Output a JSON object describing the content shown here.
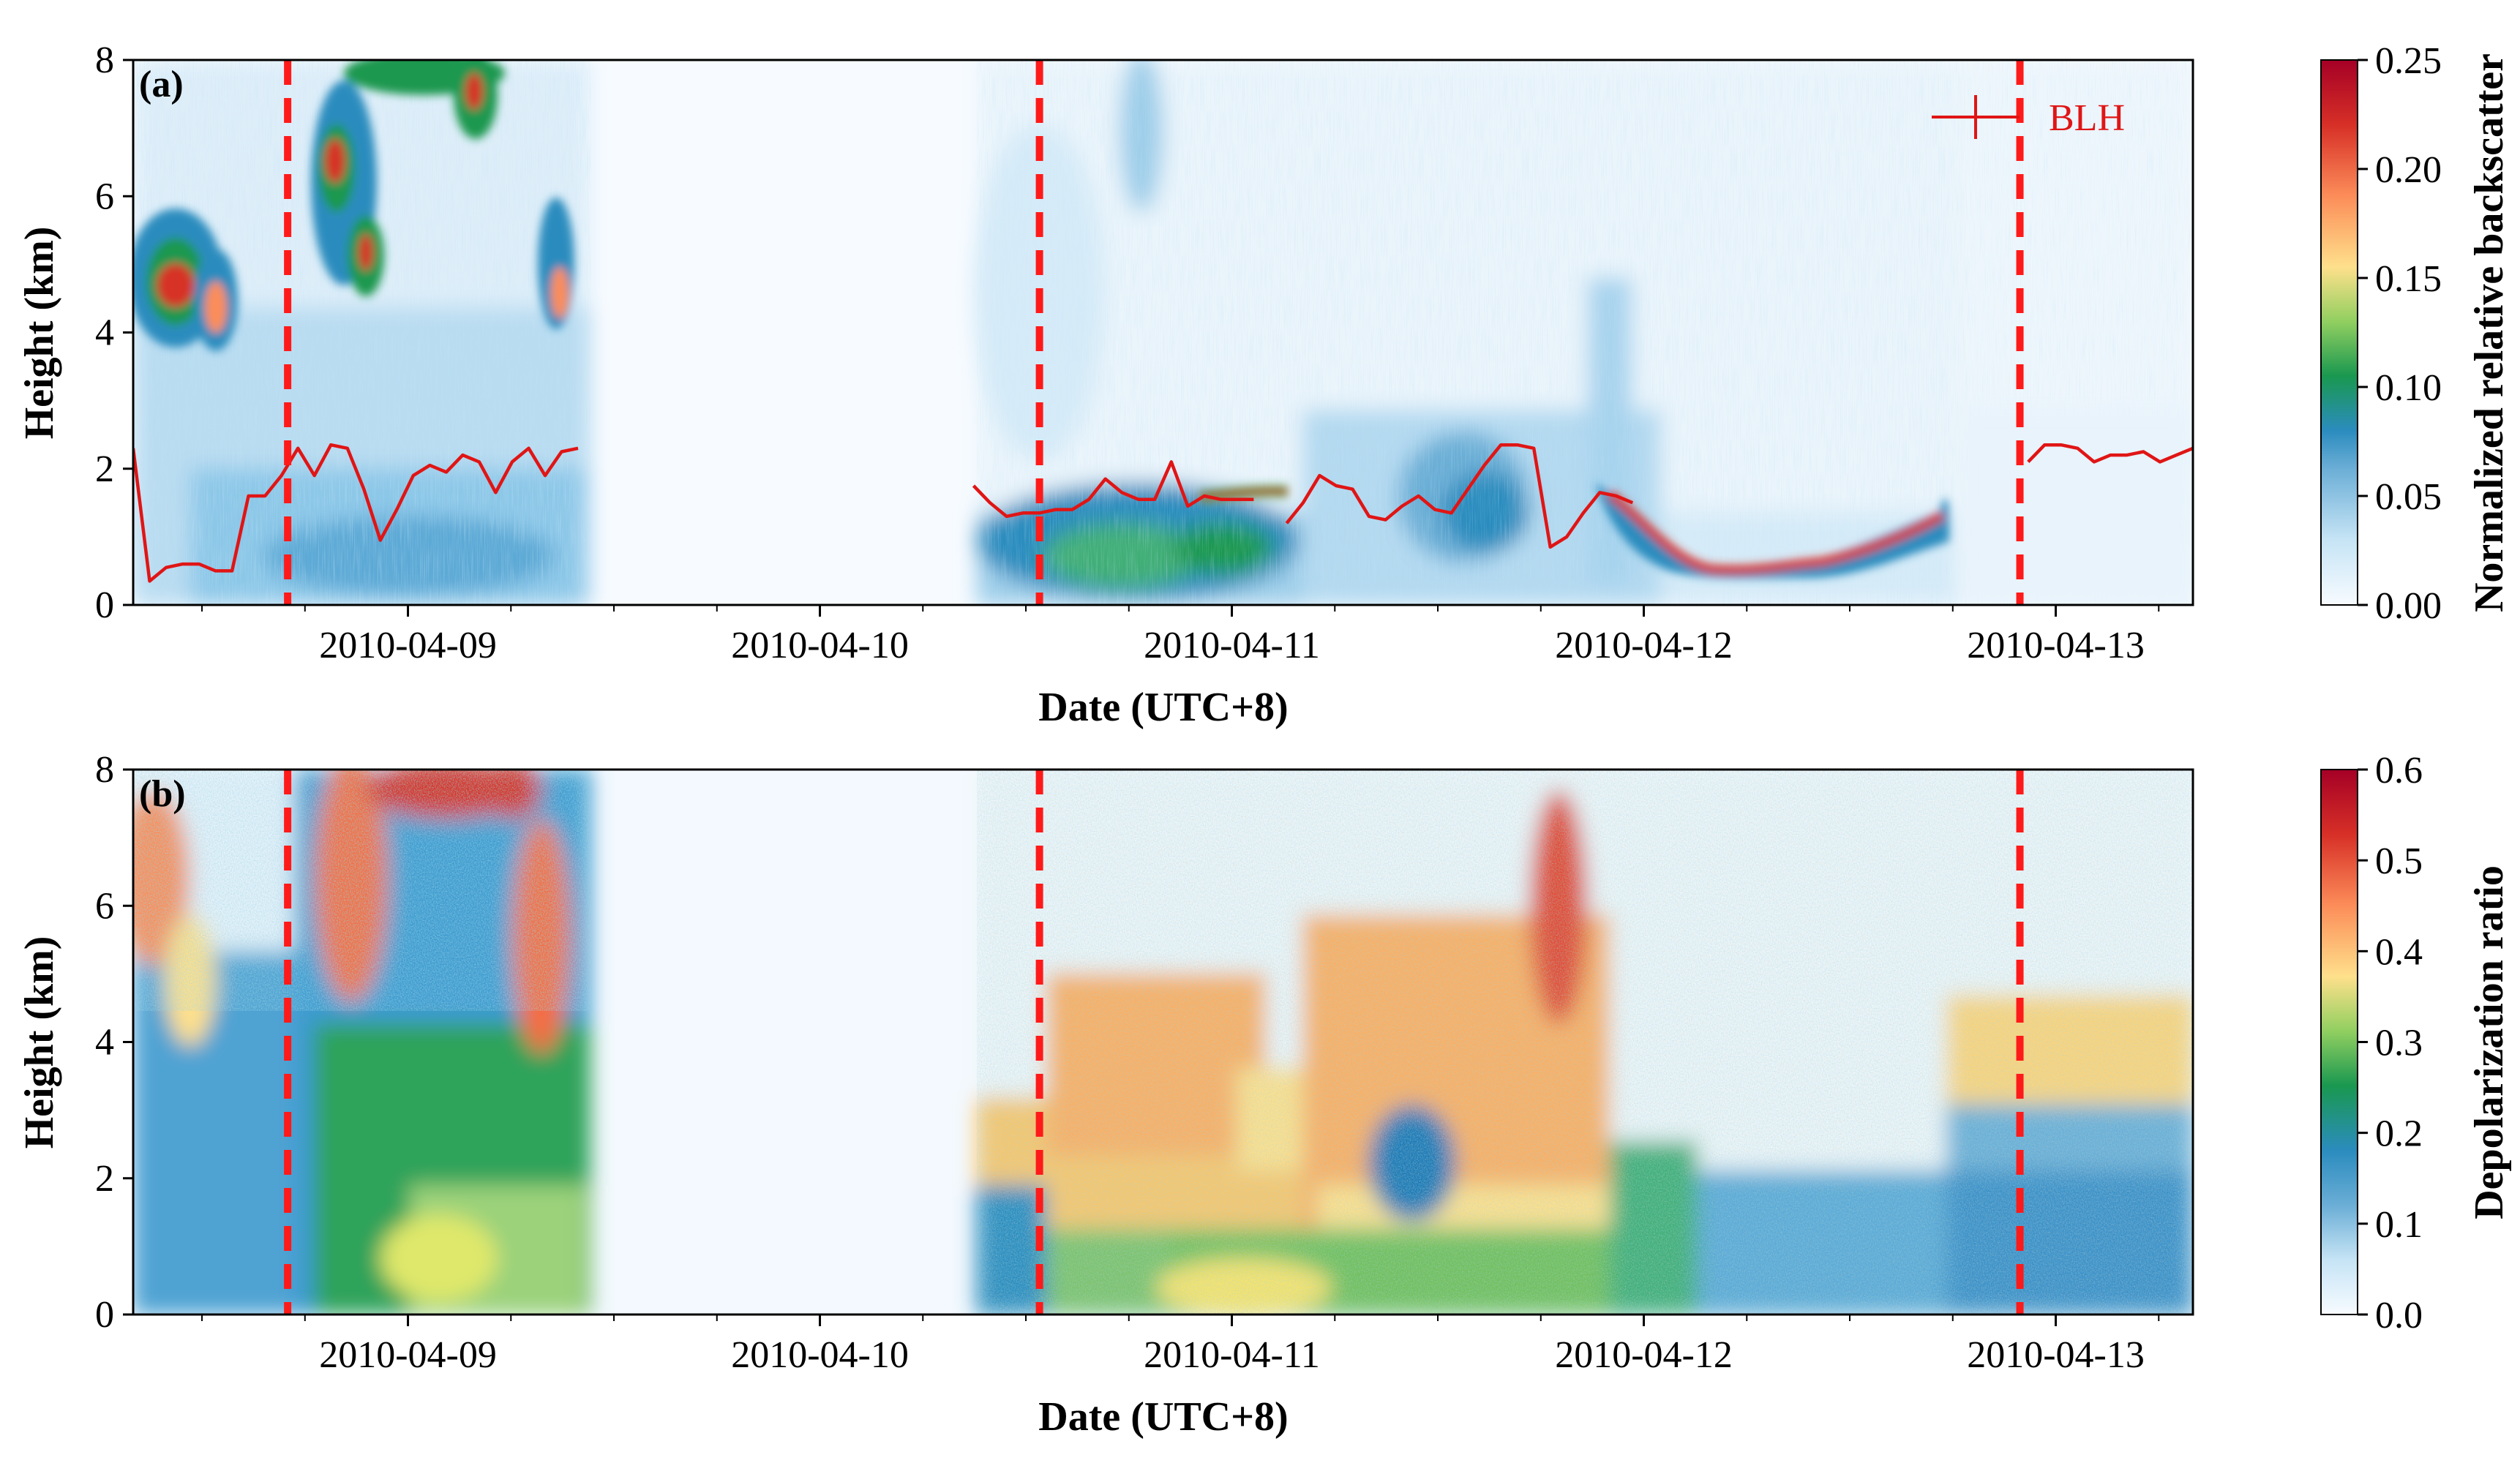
{
  "figure": {
    "panels": [
      {
        "tag": "(a)",
        "colorbar_label": "Normalized relative backscatter"
      },
      {
        "tag": "(b)",
        "colorbar_label": "Depolarization ratio"
      }
    ]
  },
  "colors": {
    "blh_line": "#e01515",
    "event_lines": "#ff1a1a",
    "axes": "#000000",
    "colormap": [
      "#f7fbff",
      "#c6e4f5",
      "#6baed6",
      "#2b8cbe",
      "#1a9850",
      "#91cf60",
      "#fee08b",
      "#fc8d59",
      "#d73027",
      "#a50026"
    ]
  },
  "chart_data": [
    {
      "type": "heatmap",
      "panel": "a",
      "title": "",
      "xlabel": "Date (UTC+8)",
      "ylabel": "Height (km)",
      "xlim_days": [
        0,
        5.0
      ],
      "x_reference_date": "2010-04-08 08:00",
      "ylim": [
        0,
        8
      ],
      "y_ticks": [
        "0",
        "2",
        "4",
        "6",
        "8"
      ],
      "x_ticks": [
        {
          "day": 0.667,
          "label": "2010-04-09"
        },
        {
          "day": 1.667,
          "label": "2010-04-10"
        },
        {
          "day": 2.667,
          "label": "2010-04-11"
        },
        {
          "day": 3.667,
          "label": "2010-04-12"
        },
        {
          "day": 4.667,
          "label": "2010-04-13"
        }
      ],
      "colorbar": {
        "label": "Normalized relative backscatter",
        "range": [
          0.0,
          0.25
        ],
        "ticks": [
          "0.00",
          "0.05",
          "0.10",
          "0.15",
          "0.20",
          "0.25"
        ]
      },
      "data_gaps_days": [
        [
          1.11,
          2.04
        ]
      ],
      "event_lines_days": [
        0.375,
        2.2,
        4.58
      ],
      "legend": {
        "entries": [
          "BLH"
        ],
        "placement": "top-right"
      },
      "series": [
        {
          "name": "BLH",
          "x_days": [
            0.0,
            0.04,
            0.08,
            0.12,
            0.16,
            0.2,
            0.24,
            0.28,
            0.32,
            0.36,
            0.4,
            0.44,
            0.48,
            0.52,
            0.56,
            0.6,
            0.64,
            0.68,
            0.72,
            0.76,
            0.8,
            0.84,
            0.88,
            0.92,
            0.96,
            1.0,
            1.04,
            1.08
          ],
          "y_km": [
            2.3,
            0.35,
            0.55,
            0.6,
            0.6,
            0.5,
            0.5,
            1.6,
            1.6,
            1.9,
            2.3,
            1.9,
            2.35,
            2.3,
            1.7,
            0.95,
            1.4,
            1.9,
            2.05,
            1.95,
            2.2,
            2.1,
            1.65,
            2.1,
            2.3,
            1.9,
            2.25,
            2.3
          ]
        },
        {
          "name": "BLH",
          "x_days": [
            2.04,
            2.08,
            2.12,
            2.16,
            2.2,
            2.24,
            2.28,
            2.32,
            2.36,
            2.4,
            2.44,
            2.48,
            2.52,
            2.56,
            2.6,
            2.64,
            2.68,
            2.72
          ],
          "y_km": [
            1.75,
            1.5,
            1.3,
            1.35,
            1.35,
            1.4,
            1.4,
            1.55,
            1.85,
            1.65,
            1.55,
            1.55,
            2.1,
            1.45,
            1.6,
            1.55,
            1.55,
            1.55
          ]
        },
        {
          "name": "BLH",
          "x_days": [
            2.8,
            2.84,
            2.88,
            2.92,
            2.96,
            3.0,
            3.04,
            3.08,
            3.12,
            3.16,
            3.2,
            3.24,
            3.28,
            3.32,
            3.36,
            3.4,
            3.44,
            3.48,
            3.52,
            3.56,
            3.6,
            3.64
          ],
          "y_km": [
            1.2,
            1.5,
            1.9,
            1.75,
            1.7,
            1.3,
            1.25,
            1.45,
            1.6,
            1.4,
            1.35,
            1.7,
            2.05,
            2.35,
            2.35,
            2.3,
            0.85,
            1.0,
            1.35,
            1.65,
            1.6,
            1.5
          ]
        },
        {
          "name": "BLH",
          "x_days": [
            4.6,
            4.64,
            4.68,
            4.72,
            4.76,
            4.8,
            4.84,
            4.88,
            4.92,
            4.96,
            5.0
          ],
          "y_km": [
            2.1,
            2.35,
            2.35,
            2.3,
            2.1,
            2.2,
            2.2,
            2.25,
            2.1,
            2.2,
            2.3
          ]
        }
      ]
    },
    {
      "type": "heatmap",
      "panel": "b",
      "title": "",
      "xlabel": "Date (UTC+8)",
      "ylabel": "Height (km)",
      "xlim_days": [
        0,
        5.0
      ],
      "x_reference_date": "2010-04-08 08:00",
      "ylim": [
        0,
        8
      ],
      "y_ticks": [
        "0",
        "2",
        "4",
        "6",
        "8"
      ],
      "x_ticks": [
        {
          "day": 0.667,
          "label": "2010-04-09"
        },
        {
          "day": 1.667,
          "label": "2010-04-10"
        },
        {
          "day": 2.667,
          "label": "2010-04-11"
        },
        {
          "day": 3.667,
          "label": "2010-04-12"
        },
        {
          "day": 4.667,
          "label": "2010-04-13"
        }
      ],
      "colorbar": {
        "label": "Depolarization ratio",
        "range": [
          0.0,
          0.6
        ],
        "ticks": [
          "0.0",
          "0.1",
          "0.2",
          "0.3",
          "0.4",
          "0.5",
          "0.6"
        ]
      },
      "data_gaps_days": [
        [
          1.11,
          2.04
        ]
      ],
      "event_lines_days": [
        0.375,
        2.2,
        4.58
      ]
    }
  ]
}
